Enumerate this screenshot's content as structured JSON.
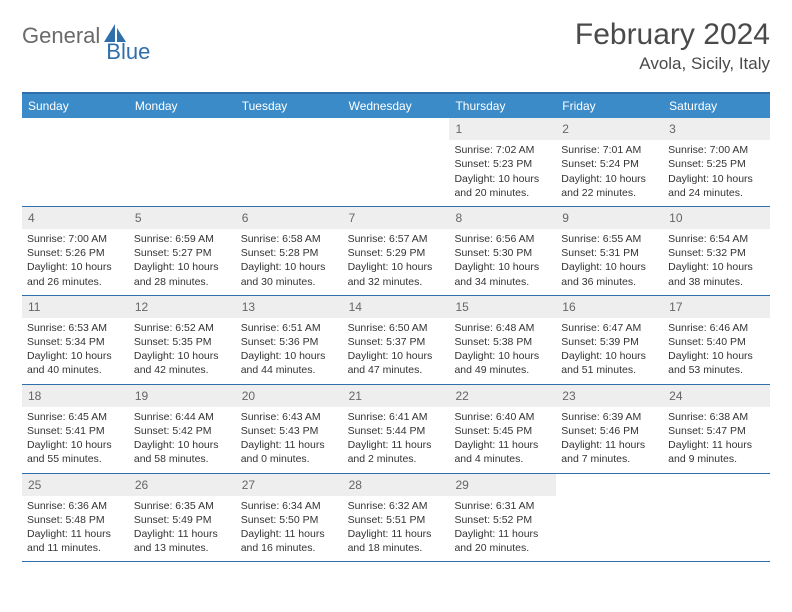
{
  "logo": {
    "part1": "General",
    "part2": "Blue"
  },
  "title": "February 2024",
  "location": "Avola, Sicily, Italy",
  "weekdays": [
    "Sunday",
    "Monday",
    "Tuesday",
    "Wednesday",
    "Thursday",
    "Friday",
    "Saturday"
  ],
  "colors": {
    "header_bar": "#3b8bc9",
    "border": "#2f6fab",
    "daynum_bg": "#eeeeee"
  },
  "weeks": [
    [
      {
        "n": "",
        "sunrise": "",
        "sunset": "",
        "daylight": ""
      },
      {
        "n": "",
        "sunrise": "",
        "sunset": "",
        "daylight": ""
      },
      {
        "n": "",
        "sunrise": "",
        "sunset": "",
        "daylight": ""
      },
      {
        "n": "",
        "sunrise": "",
        "sunset": "",
        "daylight": ""
      },
      {
        "n": "1",
        "sunrise": "Sunrise: 7:02 AM",
        "sunset": "Sunset: 5:23 PM",
        "daylight": "Daylight: 10 hours and 20 minutes."
      },
      {
        "n": "2",
        "sunrise": "Sunrise: 7:01 AM",
        "sunset": "Sunset: 5:24 PM",
        "daylight": "Daylight: 10 hours and 22 minutes."
      },
      {
        "n": "3",
        "sunrise": "Sunrise: 7:00 AM",
        "sunset": "Sunset: 5:25 PM",
        "daylight": "Daylight: 10 hours and 24 minutes."
      }
    ],
    [
      {
        "n": "4",
        "sunrise": "Sunrise: 7:00 AM",
        "sunset": "Sunset: 5:26 PM",
        "daylight": "Daylight: 10 hours and 26 minutes."
      },
      {
        "n": "5",
        "sunrise": "Sunrise: 6:59 AM",
        "sunset": "Sunset: 5:27 PM",
        "daylight": "Daylight: 10 hours and 28 minutes."
      },
      {
        "n": "6",
        "sunrise": "Sunrise: 6:58 AM",
        "sunset": "Sunset: 5:28 PM",
        "daylight": "Daylight: 10 hours and 30 minutes."
      },
      {
        "n": "7",
        "sunrise": "Sunrise: 6:57 AM",
        "sunset": "Sunset: 5:29 PM",
        "daylight": "Daylight: 10 hours and 32 minutes."
      },
      {
        "n": "8",
        "sunrise": "Sunrise: 6:56 AM",
        "sunset": "Sunset: 5:30 PM",
        "daylight": "Daylight: 10 hours and 34 minutes."
      },
      {
        "n": "9",
        "sunrise": "Sunrise: 6:55 AM",
        "sunset": "Sunset: 5:31 PM",
        "daylight": "Daylight: 10 hours and 36 minutes."
      },
      {
        "n": "10",
        "sunrise": "Sunrise: 6:54 AM",
        "sunset": "Sunset: 5:32 PM",
        "daylight": "Daylight: 10 hours and 38 minutes."
      }
    ],
    [
      {
        "n": "11",
        "sunrise": "Sunrise: 6:53 AM",
        "sunset": "Sunset: 5:34 PM",
        "daylight": "Daylight: 10 hours and 40 minutes."
      },
      {
        "n": "12",
        "sunrise": "Sunrise: 6:52 AM",
        "sunset": "Sunset: 5:35 PM",
        "daylight": "Daylight: 10 hours and 42 minutes."
      },
      {
        "n": "13",
        "sunrise": "Sunrise: 6:51 AM",
        "sunset": "Sunset: 5:36 PM",
        "daylight": "Daylight: 10 hours and 44 minutes."
      },
      {
        "n": "14",
        "sunrise": "Sunrise: 6:50 AM",
        "sunset": "Sunset: 5:37 PM",
        "daylight": "Daylight: 10 hours and 47 minutes."
      },
      {
        "n": "15",
        "sunrise": "Sunrise: 6:48 AM",
        "sunset": "Sunset: 5:38 PM",
        "daylight": "Daylight: 10 hours and 49 minutes."
      },
      {
        "n": "16",
        "sunrise": "Sunrise: 6:47 AM",
        "sunset": "Sunset: 5:39 PM",
        "daylight": "Daylight: 10 hours and 51 minutes."
      },
      {
        "n": "17",
        "sunrise": "Sunrise: 6:46 AM",
        "sunset": "Sunset: 5:40 PM",
        "daylight": "Daylight: 10 hours and 53 minutes."
      }
    ],
    [
      {
        "n": "18",
        "sunrise": "Sunrise: 6:45 AM",
        "sunset": "Sunset: 5:41 PM",
        "daylight": "Daylight: 10 hours and 55 minutes."
      },
      {
        "n": "19",
        "sunrise": "Sunrise: 6:44 AM",
        "sunset": "Sunset: 5:42 PM",
        "daylight": "Daylight: 10 hours and 58 minutes."
      },
      {
        "n": "20",
        "sunrise": "Sunrise: 6:43 AM",
        "sunset": "Sunset: 5:43 PM",
        "daylight": "Daylight: 11 hours and 0 minutes."
      },
      {
        "n": "21",
        "sunrise": "Sunrise: 6:41 AM",
        "sunset": "Sunset: 5:44 PM",
        "daylight": "Daylight: 11 hours and 2 minutes."
      },
      {
        "n": "22",
        "sunrise": "Sunrise: 6:40 AM",
        "sunset": "Sunset: 5:45 PM",
        "daylight": "Daylight: 11 hours and 4 minutes."
      },
      {
        "n": "23",
        "sunrise": "Sunrise: 6:39 AM",
        "sunset": "Sunset: 5:46 PM",
        "daylight": "Daylight: 11 hours and 7 minutes."
      },
      {
        "n": "24",
        "sunrise": "Sunrise: 6:38 AM",
        "sunset": "Sunset: 5:47 PM",
        "daylight": "Daylight: 11 hours and 9 minutes."
      }
    ],
    [
      {
        "n": "25",
        "sunrise": "Sunrise: 6:36 AM",
        "sunset": "Sunset: 5:48 PM",
        "daylight": "Daylight: 11 hours and 11 minutes."
      },
      {
        "n": "26",
        "sunrise": "Sunrise: 6:35 AM",
        "sunset": "Sunset: 5:49 PM",
        "daylight": "Daylight: 11 hours and 13 minutes."
      },
      {
        "n": "27",
        "sunrise": "Sunrise: 6:34 AM",
        "sunset": "Sunset: 5:50 PM",
        "daylight": "Daylight: 11 hours and 16 minutes."
      },
      {
        "n": "28",
        "sunrise": "Sunrise: 6:32 AM",
        "sunset": "Sunset: 5:51 PM",
        "daylight": "Daylight: 11 hours and 18 minutes."
      },
      {
        "n": "29",
        "sunrise": "Sunrise: 6:31 AM",
        "sunset": "Sunset: 5:52 PM",
        "daylight": "Daylight: 11 hours and 20 minutes."
      },
      {
        "n": "",
        "sunrise": "",
        "sunset": "",
        "daylight": ""
      },
      {
        "n": "",
        "sunrise": "",
        "sunset": "",
        "daylight": ""
      }
    ]
  ]
}
